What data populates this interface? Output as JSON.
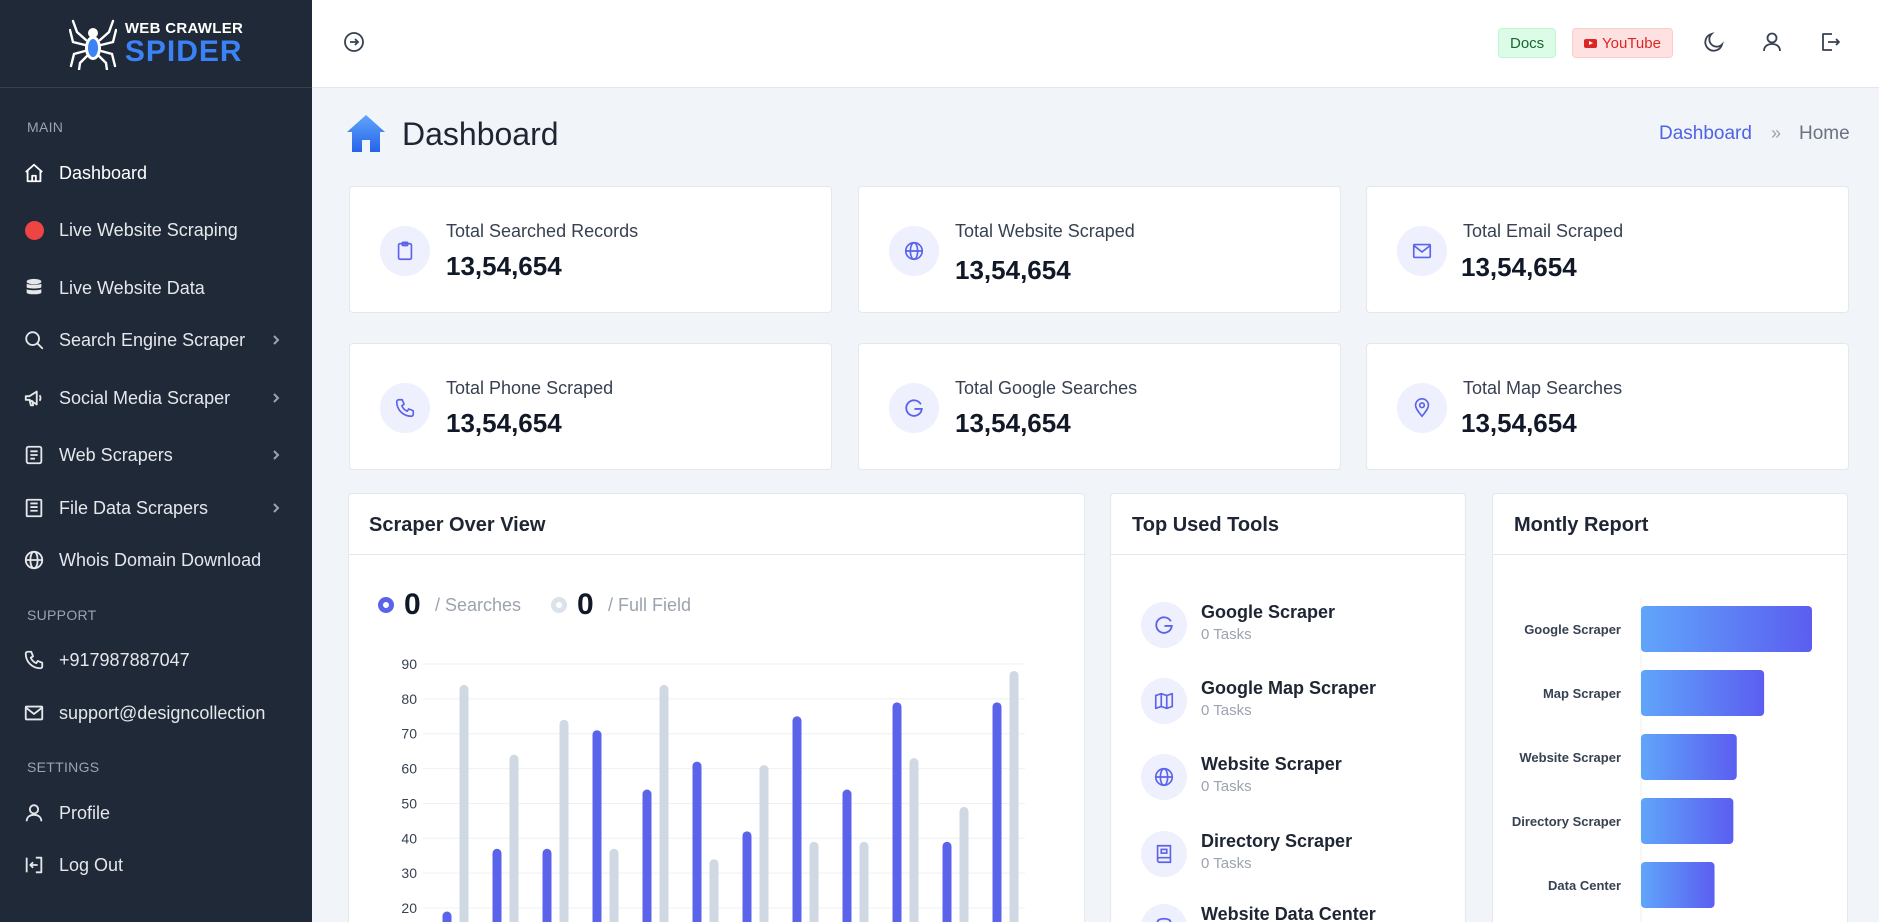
{
  "brand": {
    "line1": "WEB CRAWLER",
    "line2": "SPIDER"
  },
  "sidebar": {
    "sections": {
      "main": "MAIN",
      "support": "SUPPORT",
      "settings": "SETTINGS"
    },
    "items": [
      {
        "label": "Dashboard",
        "icon": "home-icon"
      },
      {
        "label": "Live Website Scraping",
        "icon": "red-dot-icon"
      },
      {
        "label": "Live Website Data",
        "icon": "database-icon"
      },
      {
        "label": "Search Engine Scraper",
        "icon": "search-icon"
      },
      {
        "label": "Social Media Scraper",
        "icon": "megaphone-icon"
      },
      {
        "label": "Web Scrapers",
        "icon": "layers-icon"
      },
      {
        "label": "File Data Scrapers",
        "icon": "file-list-icon"
      },
      {
        "label": "Whois Domain Download",
        "icon": "globe-icon"
      }
    ],
    "support": [
      {
        "label": "+917987887047",
        "icon": "phone-icon"
      },
      {
        "label": "support@designcollection",
        "icon": "mail-icon"
      }
    ],
    "settings": [
      {
        "label": "Profile",
        "icon": "user-icon"
      },
      {
        "label": "Log Out",
        "icon": "logout-icon"
      }
    ]
  },
  "header": {
    "docs": "Docs",
    "youtube": "YouTube"
  },
  "page": {
    "title": "Dashboard"
  },
  "breadcrumb": {
    "current": "Dashboard",
    "separator": "»",
    "home": "Home"
  },
  "stats": [
    {
      "label": "Total Searched Records",
      "value": "13,54,654",
      "icon": "clipboard-icon"
    },
    {
      "label": "Total Website Scraped",
      "value": "13,54,654",
      "icon": "globe-icon"
    },
    {
      "label": "Total Email Scraped",
      "value": "13,54,654",
      "icon": "mail-icon"
    },
    {
      "label": "Total Phone Scraped",
      "value": "13,54,654",
      "icon": "phone-icon"
    },
    {
      "label": "Total Google Searches",
      "value": "13,54,654",
      "icon": "google-icon"
    },
    {
      "label": "Total Map Searches",
      "value": "13,54,654",
      "icon": "map-pin-icon"
    }
  ],
  "overview": {
    "title": "Scraper Over View",
    "searches_value": "0",
    "searches_label": "/ Searches",
    "full_value": "0",
    "full_label": "/ Full Field"
  },
  "tools": {
    "title": "Top Used Tools",
    "items": [
      {
        "name": "Google Scraper",
        "sub": "0 Tasks",
        "icon": "google-icon"
      },
      {
        "name": "Google Map Scraper",
        "sub": "0 Tasks",
        "icon": "map-icon"
      },
      {
        "name": "Website Scraper",
        "sub": "0 Tasks",
        "icon": "globe-icon"
      },
      {
        "name": "Directory Scraper",
        "sub": "0 Tasks",
        "icon": "book-icon"
      },
      {
        "name": "Website Data Center",
        "sub": "",
        "icon": "database-icon"
      }
    ]
  },
  "report": {
    "title": "Montly Report"
  },
  "colors": {
    "primary": "#5b63eb",
    "secondary": "#cfd8e3",
    "sidebar": "#1f2937",
    "accent": "#3b82f6"
  },
  "chart_data": [
    {
      "type": "bar",
      "title": "",
      "series": [
        {
          "values": [
            19,
            37,
            37,
            71,
            54,
            62,
            42,
            75,
            54,
            79,
            39,
            79
          ]
        },
        {
          "values": [
            84,
            64,
            74,
            37,
            84,
            34,
            61,
            39,
            39,
            63,
            49,
            88
          ]
        }
      ],
      "y_ticks": [
        20,
        30,
        40,
        50,
        60,
        70,
        80,
        90
      ],
      "ylim": [
        20,
        90
      ],
      "grid": true
    },
    {
      "type": "bar",
      "orientation": "horizontal",
      "categories": [
        "Google Scraper",
        "Map Scraper",
        "Website Scraper",
        "Directory Scraper",
        "Data Center"
      ],
      "values": [
        100,
        72,
        56,
        54,
        43
      ]
    }
  ]
}
